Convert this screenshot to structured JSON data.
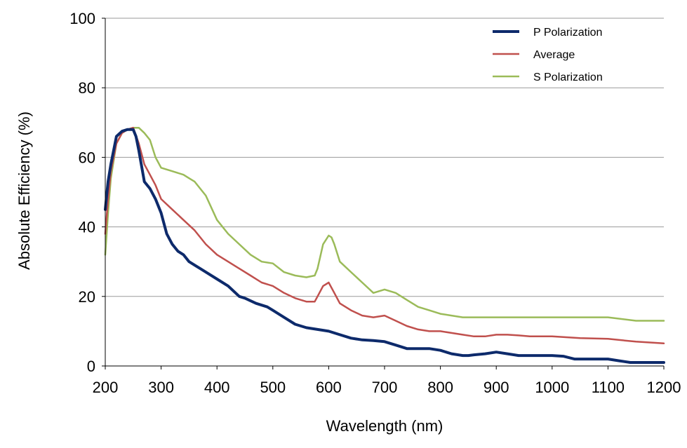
{
  "chart_data": {
    "type": "line",
    "title": "",
    "xlabel": "Wavelength (nm)",
    "ylabel": "Absolute Efficiency (%)",
    "xlim": [
      200,
      1200
    ],
    "ylim": [
      0,
      100
    ],
    "x_ticks": [
      200,
      300,
      400,
      500,
      600,
      700,
      800,
      900,
      1000,
      1100,
      1200
    ],
    "y_ticks": [
      0,
      20,
      40,
      60,
      80,
      100
    ],
    "grid": "horizontal",
    "legend_position": "top-right",
    "series": [
      {
        "name": "P Polarization",
        "color": "#0d2a6b",
        "x": [
          200,
          205,
          210,
          220,
          230,
          240,
          250,
          255,
          260,
          270,
          280,
          290,
          300,
          310,
          320,
          330,
          340,
          350,
          360,
          370,
          380,
          400,
          420,
          440,
          450,
          470,
          490,
          500,
          520,
          540,
          560,
          580,
          600,
          620,
          640,
          660,
          680,
          700,
          720,
          740,
          760,
          780,
          800,
          820,
          840,
          850,
          860,
          880,
          900,
          920,
          940,
          960,
          980,
          1000,
          1020,
          1040,
          1060,
          1080,
          1100,
          1120,
          1140,
          1160,
          1180,
          1200
        ],
        "y": [
          45,
          53,
          58,
          66,
          67.5,
          68,
          68,
          66,
          62,
          53,
          51,
          48,
          44,
          38,
          35,
          33,
          32,
          30,
          29,
          28,
          27,
          25,
          23,
          20,
          19.5,
          18,
          17,
          16,
          14,
          12,
          11,
          10.5,
          10,
          9,
          8,
          7.5,
          7.3,
          7,
          6,
          5,
          5,
          5,
          4.5,
          3.5,
          3,
          3,
          3.2,
          3.5,
          4,
          3.5,
          3,
          3,
          3,
          3,
          2.8,
          2,
          2,
          2,
          2,
          1.5,
          1,
          1,
          1,
          1
        ]
      },
      {
        "name": "Average",
        "color": "#c0504d",
        "x": [
          200,
          205,
          210,
          220,
          230,
          240,
          250,
          260,
          270,
          280,
          290,
          300,
          320,
          340,
          360,
          380,
          400,
          420,
          440,
          460,
          480,
          500,
          520,
          540,
          560,
          575,
          580,
          590,
          600,
          610,
          620,
          640,
          660,
          680,
          700,
          720,
          740,
          760,
          780,
          800,
          820,
          840,
          860,
          880,
          900,
          920,
          940,
          960,
          980,
          1000,
          1050,
          1100,
          1150,
          1200
        ],
        "y": [
          38,
          48,
          56,
          64,
          67,
          68,
          68.5,
          64,
          58,
          55,
          52,
          48,
          45,
          42,
          39,
          35,
          32,
          30,
          28,
          26,
          24,
          23,
          21,
          19.5,
          18.5,
          18.5,
          20,
          23,
          24,
          21,
          18,
          16,
          14.5,
          14,
          14.5,
          13,
          11.5,
          10.5,
          10,
          10,
          9.5,
          9,
          8.5,
          8.5,
          9,
          9,
          8.8,
          8.5,
          8.5,
          8.5,
          8,
          7.8,
          7,
          6.5
        ]
      },
      {
        "name": "S Polarization",
        "color": "#9bbb59",
        "x": [
          200,
          205,
          210,
          220,
          230,
          240,
          250,
          260,
          270,
          280,
          290,
          300,
          320,
          340,
          350,
          360,
          380,
          400,
          420,
          440,
          460,
          480,
          500,
          520,
          540,
          560,
          575,
          580,
          590,
          600,
          605,
          610,
          620,
          640,
          660,
          680,
          700,
          720,
          740,
          760,
          780,
          800,
          820,
          840,
          860,
          880,
          900,
          950,
          1000,
          1050,
          1100,
          1150,
          1200
        ],
        "y": [
          32,
          44,
          54,
          64,
          67,
          68,
          68.5,
          68.5,
          67,
          65,
          60,
          57,
          56,
          55,
          54,
          53,
          49,
          42,
          38,
          35,
          32,
          30,
          29.5,
          27,
          26,
          25.5,
          26,
          28,
          35,
          37.5,
          37,
          35,
          30,
          27,
          24,
          21,
          22,
          21,
          19,
          17,
          16,
          15,
          14.5,
          14,
          14,
          14,
          14,
          14,
          14,
          14,
          14,
          13,
          13
        ]
      }
    ]
  }
}
